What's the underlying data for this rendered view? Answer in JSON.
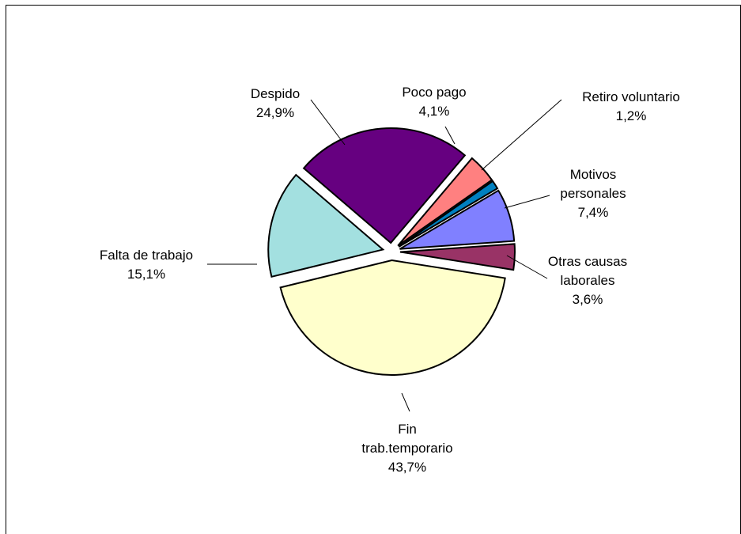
{
  "chart_data": {
    "type": "pie",
    "title": "",
    "slices": [
      {
        "label": "Fin trab.temporario",
        "value": 43.7,
        "value_label": "43,7%",
        "color": "#FFFFCC"
      },
      {
        "label": "Falta de trabajo",
        "value": 15.1,
        "value_label": "15,1%",
        "color": "#A3E0E0"
      },
      {
        "label": "Despido",
        "value": 24.9,
        "value_label": "24,9%",
        "color": "#660080"
      },
      {
        "label": "Poco pago",
        "value": 4.1,
        "value_label": "4,1%",
        "color": "#FF8080"
      },
      {
        "label": "Retiro voluntario",
        "value": 1.2,
        "value_label": "1,2%",
        "color": "#0080C0"
      },
      {
        "label": "Motivos personales",
        "value": 7.4,
        "value_label": "7,4%",
        "color": "#8080FF"
      },
      {
        "label": "Otras causas laborales",
        "value": 3.6,
        "value_label": "3,6%",
        "color": "#993366"
      }
    ],
    "label_lines": [
      [
        "Fin",
        "trab.temporario",
        "43,7%"
      ],
      [
        "Falta de trabajo",
        "15,1%"
      ],
      [
        "Despido",
        "24,9%"
      ],
      [
        "Poco pago",
        "4,1%"
      ],
      [
        "Retiro voluntario",
        "1,2%"
      ],
      [
        "Motivos",
        "personales",
        "7,4%"
      ],
      [
        "Otras causas",
        "laborales",
        "3,6%"
      ]
    ],
    "legend": "none",
    "exploded": true
  }
}
